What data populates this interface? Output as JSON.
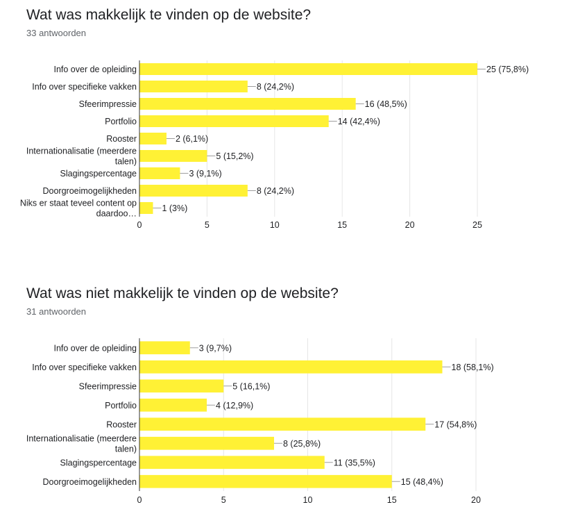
{
  "chart_data": [
    {
      "type": "bar",
      "orientation": "horizontal",
      "title": "Wat was makkelijk te vinden op de website?",
      "subtitle": "33 antwoorden",
      "categories": [
        "Info over de opleiding",
        "Info over specifieke vakken",
        "Sfeerimpressie",
        "Portfolio",
        "Rooster",
        "Internationalisatie (meerdere talen)",
        "Slagingspercentage",
        "Doorgroeimogelijkheden",
        "Niks er staat teveel content op daardoo…"
      ],
      "category_lines": [
        [
          "Info over de opleiding"
        ],
        [
          "Info over specifieke vakken"
        ],
        [
          "Sfeerimpressie"
        ],
        [
          "Portfolio"
        ],
        [
          "Rooster"
        ],
        [
          "Internationalisatie (meerdere",
          "talen)"
        ],
        [
          "Slagingspercentage"
        ],
        [
          "Doorgroeimogelijkheden"
        ],
        [
          "Niks er staat teveel content op",
          "daardoo…"
        ]
      ],
      "values": [
        25,
        8,
        16,
        14,
        2,
        5,
        3,
        8,
        1
      ],
      "value_labels": [
        "25 (75,8%)",
        "8 (24,2%)",
        "16 (48,5%)",
        "14 (42,4%)",
        "2 (6,1%)",
        "5 (15,2%)",
        "3 (9,1%)",
        "8 (24,2%)",
        "1 (3%)"
      ],
      "xlim": [
        0,
        25
      ],
      "xticks": [
        0,
        5,
        10,
        15,
        20,
        25
      ],
      "xtick_labels": [
        "0",
        "5",
        "10",
        "15",
        "20",
        "25"
      ],
      "grid": true,
      "bar_color": "#fff135"
    },
    {
      "type": "bar",
      "orientation": "horizontal",
      "title": "Wat was niet makkelijk te vinden op de website?",
      "subtitle": "31 antwoorden",
      "categories": [
        "Info over de opleiding",
        "Info over specifieke vakken",
        "Sfeerimpressie",
        "Portfolio",
        "Rooster",
        "Internationalisatie (meerdere talen)",
        "Slagingspercentage",
        "Doorgroeimogelijkheden"
      ],
      "category_lines": [
        [
          "Info over de opleiding"
        ],
        [
          "Info over specifieke vakken"
        ],
        [
          "Sfeerimpressie"
        ],
        [
          "Portfolio"
        ],
        [
          "Rooster"
        ],
        [
          "Internationalisatie (meerdere",
          "talen)"
        ],
        [
          "Slagingspercentage"
        ],
        [
          "Doorgroeimogelijkheden"
        ]
      ],
      "values": [
        3,
        18,
        5,
        4,
        17,
        8,
        11,
        15
      ],
      "value_labels": [
        "3 (9,7%)",
        "18 (58,1%)",
        "5 (16,1%)",
        "4 (12,9%)",
        "17 (54,8%)",
        "8 (25,8%)",
        "11 (35,5%)",
        "15 (48,4%)"
      ],
      "xlim": [
        0,
        20
      ],
      "xticks": [
        0,
        5,
        10,
        15,
        20
      ],
      "xtick_labels": [
        "0",
        "5",
        "10",
        "15",
        "20"
      ],
      "grid": true,
      "bar_color": "#fff135"
    }
  ]
}
